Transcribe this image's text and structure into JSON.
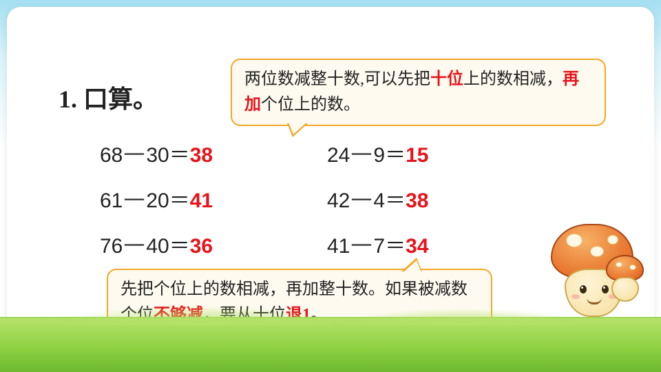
{
  "title": "1. 口算。",
  "colors": {
    "answer": "#e6131a",
    "highlight": "#e6131a",
    "bubble_border": "#f5a623",
    "bubble_bg": "#fefaf0",
    "text": "#222222",
    "sky_top": "#a4dff2",
    "grass": "#8bcf3f",
    "mushroom_cap": "#e8732c"
  },
  "typography": {
    "title_fontsize": 36,
    "problem_fontsize": 30,
    "bubble_fontsize": 24
  },
  "speech_top": {
    "pre1": "两位数减整十数,可以先把",
    "hl1": "十位",
    "mid1": "上的数相减，",
    "hl2": "再加",
    "post1": "个位上的数。"
  },
  "speech_bottom": {
    "pre1": "先把个位上的数相减，再加整十数。如果被减数个位",
    "hl1": "不够减",
    "mid1": "，要从十位",
    "hl2": "退1",
    "post1": "。"
  },
  "problems": [
    {
      "lhs": "68",
      "op": "－",
      "rhs": "30",
      "eq": "＝",
      "ans": "38"
    },
    {
      "lhs": "24",
      "op": "－",
      "rhs": "9",
      "eq": "＝",
      "ans": "15"
    },
    {
      "lhs": "61",
      "op": "－",
      "rhs": "20",
      "eq": "＝",
      "ans": "41"
    },
    {
      "lhs": "42",
      "op": "－",
      "rhs": "4",
      "eq": "＝",
      "ans": "38"
    },
    {
      "lhs": "76",
      "op": "－",
      "rhs": "40",
      "eq": "＝",
      "ans": "36"
    },
    {
      "lhs": "41",
      "op": "－",
      "rhs": "7",
      "eq": "＝",
      "ans": "34"
    }
  ]
}
